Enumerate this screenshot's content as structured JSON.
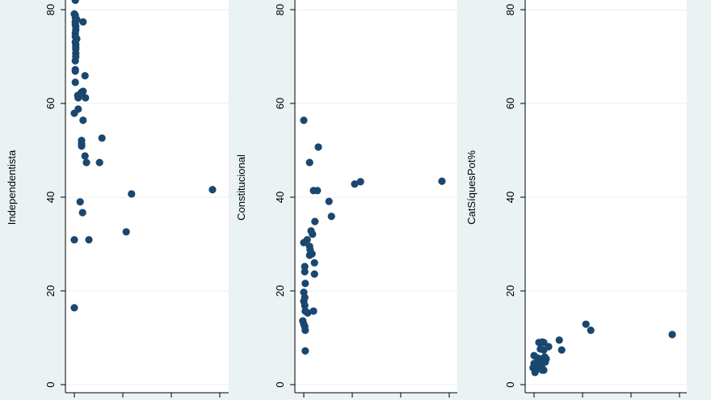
{
  "colors": {
    "background": "#eaf2f3",
    "plot_bg": "#ffffff",
    "grid": "#eaf2f3",
    "marker": "#1a476f",
    "axis": "#000000"
  },
  "chart_data": [
    {
      "type": "scatter",
      "ylabel": "Independentista",
      "ylim": [
        0,
        82
      ],
      "yticks": [
        0,
        20,
        40,
        60,
        80
      ],
      "xticks": [
        0,
        1,
        2,
        3
      ],
      "xlim": [
        -0.2,
        3.2
      ],
      "grid": true,
      "points": [
        [
          0.02,
          82
        ],
        [
          0,
          79.1
        ],
        [
          0.02,
          78.8
        ],
        [
          0.02,
          78.3
        ],
        [
          0.05,
          77.9
        ],
        [
          0.02,
          77.4
        ],
        [
          0.18,
          77.4
        ],
        [
          0.02,
          76.9
        ],
        [
          0.03,
          76.4
        ],
        [
          0.03,
          75.7
        ],
        [
          0.02,
          75.0
        ],
        [
          0.02,
          74.3
        ],
        [
          0.05,
          73.8
        ],
        [
          0.02,
          73.1
        ],
        [
          0.03,
          72.6
        ],
        [
          0.03,
          72.1
        ],
        [
          0.03,
          71.6
        ],
        [
          0.03,
          70.7
        ],
        [
          0.03,
          70.0
        ],
        [
          0.02,
          69.1
        ],
        [
          0.02,
          67.2
        ],
        [
          0.02,
          66.9
        ],
        [
          0.22,
          65.9
        ],
        [
          0.02,
          64.5
        ],
        [
          0.18,
          62.6
        ],
        [
          0.15,
          62.4
        ],
        [
          0.13,
          62.1
        ],
        [
          0.07,
          61.7
        ],
        [
          0.08,
          61.2
        ],
        [
          0.23,
          61.2
        ],
        [
          0.08,
          58.8
        ],
        [
          0,
          57.9
        ],
        [
          0.18,
          56.4
        ],
        [
          0.57,
          52.6
        ],
        [
          0.15,
          52.1
        ],
        [
          0.15,
          51.4
        ],
        [
          0.15,
          50.9
        ],
        [
          0.22,
          48.8
        ],
        [
          0.25,
          47.4
        ],
        [
          0.52,
          47.4
        ],
        [
          2.85,
          41.6
        ],
        [
          1.18,
          40.7
        ],
        [
          0.12,
          39.0
        ],
        [
          0.17,
          36.7
        ],
        [
          1.07,
          32.6
        ],
        [
          0,
          30.9
        ],
        [
          0.3,
          30.9
        ],
        [
          0,
          16.4
        ]
      ]
    },
    {
      "type": "scatter",
      "ylabel": "Constitucional",
      "ylim": [
        0,
        82
      ],
      "yticks": [
        0,
        20,
        40,
        60,
        80
      ],
      "xticks": [
        0,
        1,
        2,
        3
      ],
      "xlim": [
        -0.2,
        3.2
      ],
      "grid": true,
      "points": [
        [
          0,
          56.4
        ],
        [
          0.3,
          50.7
        ],
        [
          0.12,
          47.4
        ],
        [
          0.2,
          41.4
        ],
        [
          0.28,
          41.4
        ],
        [
          1.05,
          42.8
        ],
        [
          1.17,
          43.3
        ],
        [
          2.85,
          43.4
        ],
        [
          0.52,
          39.1
        ],
        [
          0.57,
          35.9
        ],
        [
          0.23,
          34.8
        ],
        [
          0.15,
          32.8
        ],
        [
          0.18,
          32.1
        ],
        [
          0.07,
          30.9
        ],
        [
          0,
          30.3
        ],
        [
          0.12,
          29.5
        ],
        [
          0.13,
          28.8
        ],
        [
          0.17,
          27.9
        ],
        [
          0.12,
          27.6
        ],
        [
          0.22,
          26.0
        ],
        [
          0.02,
          25.2
        ],
        [
          0.02,
          24.1
        ],
        [
          0.22,
          23.6
        ],
        [
          0.03,
          21.6
        ],
        [
          0,
          19.7
        ],
        [
          0.02,
          18.6
        ],
        [
          0,
          17.8
        ],
        [
          0.02,
          16.9
        ],
        [
          0.03,
          15.7
        ],
        [
          0.08,
          15.3
        ],
        [
          0.2,
          15.7
        ],
        [
          -0.02,
          13.6
        ],
        [
          0,
          12.9
        ],
        [
          0.02,
          12.4
        ],
        [
          0.03,
          11.6
        ],
        [
          0.03,
          7.2
        ]
      ]
    },
    {
      "type": "scatter",
      "ylabel": "CatSíquesPot%",
      "ylim": [
        0,
        82
      ],
      "yticks": [
        0,
        20,
        40,
        60,
        80
      ],
      "xticks": [
        0,
        1,
        2,
        3
      ],
      "xlim": [
        -0.2,
        3.2
      ],
      "grid": true,
      "points": [
        [
          1.07,
          12.9
        ],
        [
          1.17,
          11.6
        ],
        [
          2.85,
          10.7
        ],
        [
          0.52,
          9.5
        ],
        [
          0.57,
          7.4
        ],
        [
          0.1,
          9.0
        ],
        [
          0.17,
          9.1
        ],
        [
          0.2,
          9.0
        ],
        [
          0.3,
          8.1
        ],
        [
          0.13,
          7.6
        ],
        [
          0.2,
          7.4
        ],
        [
          0,
          6.2
        ],
        [
          0.07,
          5.7
        ],
        [
          0.12,
          5.5
        ],
        [
          0.22,
          5.9
        ],
        [
          0.25,
          5.5
        ],
        [
          0,
          4.5
        ],
        [
          0.05,
          4.1
        ],
        [
          0.1,
          4.5
        ],
        [
          0.17,
          4.8
        ],
        [
          0.23,
          4.8
        ],
        [
          -0.02,
          3.6
        ],
        [
          0.03,
          3.1
        ],
        [
          0.08,
          3.4
        ],
        [
          0.17,
          3.4
        ],
        [
          0.2,
          3.1
        ],
        [
          0.02,
          2.6
        ],
        [
          0.17,
          3.1
        ]
      ]
    }
  ]
}
